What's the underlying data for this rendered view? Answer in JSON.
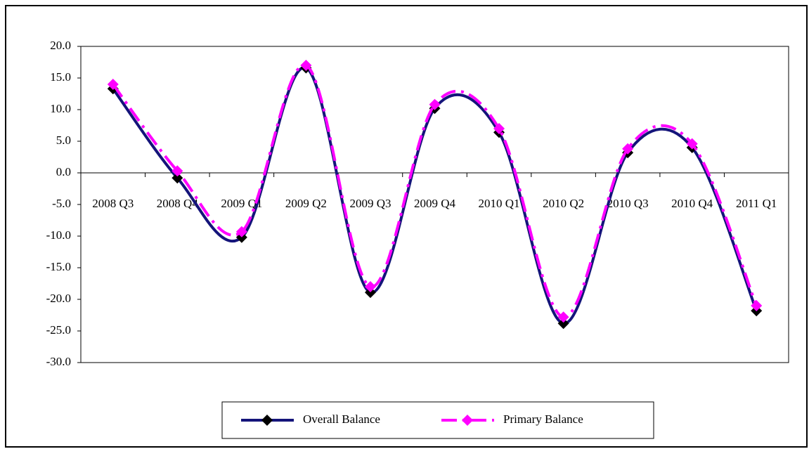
{
  "chart_data": {
    "type": "line",
    "smooth": true,
    "categories": [
      "2008 Q3",
      "2008 Q4",
      "2009 Q1",
      "2009 Q2",
      "2009 Q3",
      "2009 Q4",
      "2010 Q1",
      "2010 Q2",
      "2010 Q3",
      "2010 Q4",
      "2011 Q1"
    ],
    "series": [
      {
        "name": "Overall Balance",
        "color": "#14147a",
        "marker_color": "#000000",
        "dash": false,
        "values": [
          13.3,
          -0.8,
          -10.2,
          16.6,
          -18.9,
          10.2,
          6.4,
          -23.8,
          3.2,
          4.0,
          -21.8
        ]
      },
      {
        "name": "Primary Balance",
        "color": "#ff00ff",
        "marker_color": "#ff00ff",
        "dash": true,
        "values": [
          14.0,
          0.3,
          -9.3,
          17.0,
          -18.0,
          10.8,
          7.0,
          -22.8,
          3.8,
          4.6,
          -21.0
        ]
      }
    ],
    "ylim": [
      -30,
      20
    ],
    "yticks": [
      {
        "value": -30,
        "label": "-30.0"
      },
      {
        "value": -25,
        "label": "-25.0"
      },
      {
        "value": -20,
        "label": "-20.0"
      },
      {
        "value": -15,
        "label": "-15.0"
      },
      {
        "value": -10,
        "label": "-10.0"
      },
      {
        "value": -5,
        "label": "-5.0"
      },
      {
        "value": 0,
        "label": "0.0"
      },
      {
        "value": 5,
        "label": "5.0"
      },
      {
        "value": 10,
        "label": "10.0"
      },
      {
        "value": 15,
        "label": "15.0"
      },
      {
        "value": 20,
        "label": "20.0"
      }
    ],
    "legend": "bottom"
  }
}
